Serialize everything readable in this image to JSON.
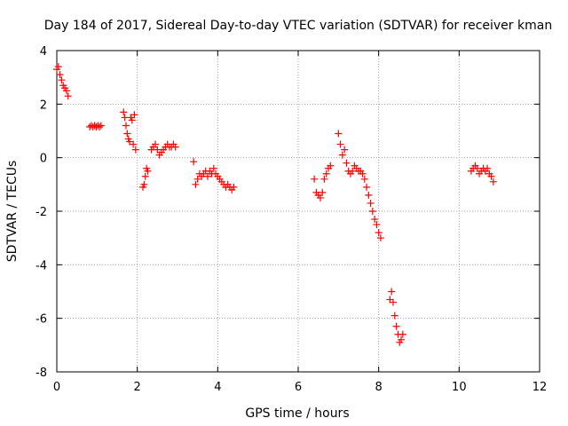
{
  "chart_data": {
    "type": "scatter",
    "title": "Day 184 of 2017, Sidereal Day-to-day VTEC variation (SDTVAR) for receiver kman",
    "xlabel": "GPS time / hours",
    "ylabel": "SDTVAR / TECUs",
    "xlim": [
      0,
      12
    ],
    "ylim": [
      -8,
      4
    ],
    "xticks": [
      0,
      2,
      4,
      6,
      8,
      10,
      12
    ],
    "yticks": [
      -8,
      -6,
      -4,
      -2,
      0,
      2,
      4
    ],
    "grid": true,
    "marker": "+",
    "marker_color": "#ff0000",
    "grid_color": "#a0a0a0",
    "segments": [
      {
        "x": [
          0.0,
          0.04,
          0.08,
          0.12,
          0.16,
          0.2,
          0.24,
          0.28
        ],
        "y": [
          3.3,
          3.4,
          3.1,
          2.9,
          2.7,
          2.6,
          2.5,
          2.3
        ]
      },
      {
        "x": [
          0.82,
          0.86,
          0.9,
          0.94,
          0.98,
          1.02,
          1.06,
          1.1
        ],
        "y": [
          1.15,
          1.2,
          1.15,
          1.2,
          1.15,
          1.2,
          1.15,
          1.2
        ]
      },
      {
        "x": [
          1.66,
          1.69,
          1.72,
          1.75,
          1.78,
          1.81,
          1.84,
          1.87,
          1.9,
          1.93,
          1.96
        ],
        "y": [
          1.7,
          1.5,
          1.2,
          0.9,
          0.7,
          0.6,
          1.5,
          1.4,
          0.5,
          1.6,
          0.3
        ]
      },
      {
        "x": [
          2.14,
          2.17,
          2.2,
          2.23,
          2.26
        ],
        "y": [
          -1.1,
          -1.0,
          -0.7,
          -0.4,
          -0.5
        ]
      },
      {
        "x": [
          2.35,
          2.4,
          2.45,
          2.5,
          2.55,
          2.6,
          2.65,
          2.7,
          2.75,
          2.8,
          2.85,
          2.9,
          2.95
        ],
        "y": [
          0.3,
          0.4,
          0.5,
          0.3,
          0.1,
          0.2,
          0.3,
          0.4,
          0.5,
          0.4,
          0.4,
          0.5,
          0.4
        ]
      },
      {
        "x": [
          3.4,
          3.45,
          3.5,
          3.55,
          3.6,
          3.65,
          3.7,
          3.75,
          3.8,
          3.85,
          3.9,
          3.95,
          4.0,
          4.05,
          4.1,
          4.15,
          4.2,
          4.25,
          4.3,
          4.35,
          4.4
        ],
        "y": [
          -0.15,
          -1.0,
          -0.8,
          -0.6,
          -0.7,
          -0.6,
          -0.5,
          -0.7,
          -0.5,
          -0.6,
          -0.4,
          -0.6,
          -0.7,
          -0.8,
          -0.9,
          -1.0,
          -1.1,
          -1.0,
          -1.1,
          -1.2,
          -1.1
        ]
      },
      {
        "x": [
          6.4,
          6.45,
          6.5,
          6.55,
          6.6,
          6.65,
          6.7,
          6.75,
          6.8
        ],
        "y": [
          -0.8,
          -1.3,
          -1.4,
          -1.5,
          -1.3,
          -0.8,
          -0.6,
          -0.4,
          -0.3
        ]
      },
      {
        "x": [
          7.0,
          7.05,
          7.1,
          7.15,
          7.2,
          7.25,
          7.3,
          7.35,
          7.4,
          7.45,
          7.5,
          7.55,
          7.6,
          7.65,
          7.7,
          7.75,
          7.8,
          7.85,
          7.9,
          7.95,
          8.0,
          8.05
        ],
        "y": [
          0.9,
          0.5,
          0.1,
          0.3,
          -0.2,
          -0.5,
          -0.6,
          -0.5,
          -0.3,
          -0.4,
          -0.5,
          -0.5,
          -0.6,
          -0.8,
          -1.1,
          -1.4,
          -1.7,
          -2.0,
          -2.3,
          -2.5,
          -2.8,
          -3.0
        ]
      },
      {
        "x": [
          8.28,
          8.32,
          8.36,
          8.4,
          8.44,
          8.48,
          8.52,
          8.56,
          8.6
        ],
        "y": [
          -5.3,
          -5.0,
          -5.4,
          -5.9,
          -6.3,
          -6.6,
          -6.9,
          -6.8,
          -6.6
        ]
      },
      {
        "x": [
          10.3,
          10.35,
          10.4,
          10.45,
          10.5,
          10.55,
          10.6,
          10.65,
          10.7,
          10.75,
          10.8,
          10.85
        ],
        "y": [
          -0.5,
          -0.4,
          -0.3,
          -0.4,
          -0.6,
          -0.5,
          -0.4,
          -0.5,
          -0.4,
          -0.6,
          -0.7,
          -0.9
        ]
      }
    ]
  }
}
